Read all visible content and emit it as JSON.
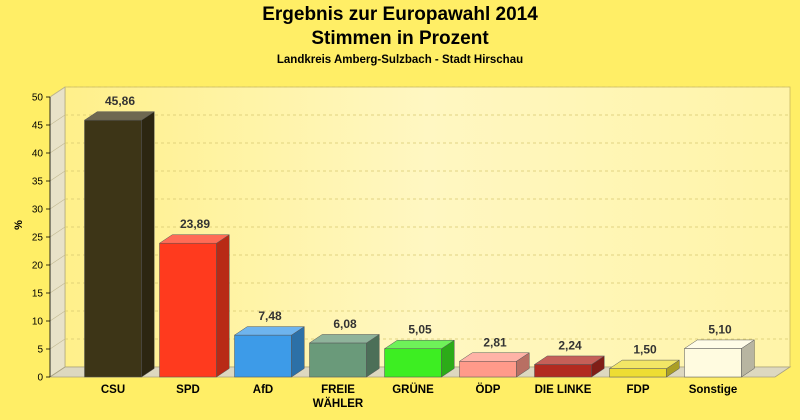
{
  "chart_data": {
    "type": "bar",
    "title": "Ergebnis zur Europawahl 2014",
    "title_line2": "Stimmen in Prozent",
    "subtitle": "Landkreis Amberg-Sulzbach - Stadt Hirschau",
    "ylabel": "%",
    "ylim": [
      0,
      50
    ],
    "yticks": [
      0,
      5,
      10,
      15,
      20,
      25,
      30,
      35,
      40,
      45,
      50
    ],
    "grid": true,
    "categories": [
      "CSU",
      "SPD",
      "AfD",
      "FREIE WÄHLER",
      "GRÜNE",
      "ÖDP",
      "DIE LINKE",
      "FDP",
      "Sonstige"
    ],
    "values": [
      45.86,
      23.89,
      7.48,
      6.08,
      5.05,
      2.81,
      2.24,
      1.5,
      5.1
    ],
    "value_labels": [
      "45,86",
      "23,89",
      "7,48",
      "6,08",
      "5,05",
      "2,81",
      "2,24",
      "1,50",
      "5,10"
    ],
    "colors": [
      "#3d3517",
      "#ff3a1e",
      "#3d9be8",
      "#6a9a7a",
      "#3dee22",
      "#ff9a8a",
      "#b22a20",
      "#eedd33",
      "#fffbe0"
    ]
  }
}
